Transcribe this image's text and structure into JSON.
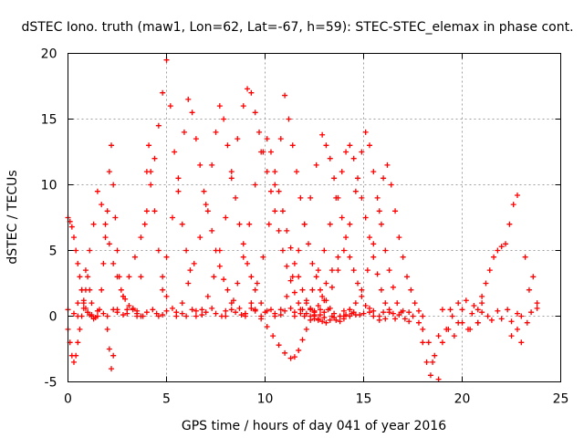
{
  "chart_data": {
    "type": "scatter",
    "title": "dSTEC Iono. truth (maw1, Lon=62, Lat=-67, h=59): STEC-STEC_elemax in phase cont.",
    "xlabel": "GPS time / hours of day 041 of year 2016",
    "ylabel": "dSTEC  / TECUs",
    "xlim": [
      0,
      25
    ],
    "ylim": [
      -5,
      20
    ],
    "x_ticks": [
      "0",
      "5",
      "10",
      "15",
      "20",
      "25"
    ],
    "y_ticks": [
      "-5",
      "0",
      "5",
      "10",
      "15",
      "20"
    ],
    "grid": true,
    "marker": "+",
    "color": "#ff0000",
    "series": [
      {
        "x": [
          0.0,
          0.3,
          0.5,
          0.8,
          1.0,
          1.2,
          1.5,
          1.8,
          2.0,
          2.3,
          2.5,
          2.8,
          3.0,
          3.3,
          3.5,
          3.8,
          4.0,
          4.3,
          4.5,
          4.8,
          5.0,
          5.3,
          5.5,
          5.8,
          6.0,
          6.3,
          6.5,
          6.8,
          7.0,
          7.3,
          7.5,
          7.8,
          8.0,
          8.3,
          8.5,
          8.8,
          9.0,
          9.3,
          9.5,
          9.8,
          10.0,
          10.3,
          10.5,
          10.8,
          11.0,
          11.3,
          11.5,
          11.8,
          12.0,
          12.3,
          12.5,
          12.8,
          13.0,
          13.3,
          13.5,
          13.8,
          14.0,
          14.3,
          14.5,
          14.8,
          15.0,
          15.3,
          15.5,
          15.8,
          16.0,
          16.3,
          16.5,
          16.8,
          17.0,
          17.3,
          17.5,
          17.8,
          18.0,
          18.3,
          18.5,
          18.8,
          19.0,
          19.3,
          19.5,
          19.8,
          20.0,
          20.3,
          20.5,
          20.8,
          21.0,
          21.3,
          21.5,
          21.8,
          22.0,
          22.3,
          22.5,
          22.8,
          23.0,
          23.3,
          23.5,
          23.8
        ],
        "y": [
          0.5,
          0.2,
          0.0,
          0.6,
          0.3,
          0.1,
          0.4,
          0.2,
          0.0,
          0.5,
          0.3,
          0.1,
          0.2,
          0.6,
          0.4,
          0.0,
          0.3,
          0.5,
          0.2,
          0.1,
          0.4,
          0.6,
          0.3,
          0.2,
          0.0,
          0.5,
          0.4,
          0.1,
          0.3,
          0.6,
          0.2,
          0.0,
          0.4,
          0.5,
          0.3,
          0.1,
          0.2,
          0.6,
          0.4,
          0.0,
          0.3,
          0.5,
          0.2,
          0.1,
          0.4,
          0.6,
          0.3,
          0.2,
          0.0,
          0.5,
          0.4,
          0.1,
          0.3,
          0.6,
          0.2,
          0.0,
          0.4,
          0.5,
          0.3,
          0.1,
          0.2,
          0.6,
          0.4,
          0.0,
          0.3,
          0.5,
          0.2,
          0.1,
          0.4,
          0.3,
          0.0,
          -0.5,
          -1.0,
          -2.0,
          -3.5,
          -1.5,
          0.5,
          -1.0,
          0.0,
          -0.5,
          0.5,
          -1.0,
          0.2,
          -0.5,
          0.3,
          0.0,
          -0.3,
          0.4,
          -0.2,
          0.5,
          -0.4,
          0.2,
          0.0,
          -0.5,
          0.3,
          0.6
        ]
      },
      {
        "x": [
          0.0,
          0.1,
          0.2,
          0.3,
          0.4,
          0.5,
          0.6,
          0.7,
          0.8,
          0.9,
          1.0,
          1.1,
          1.2,
          1.3,
          1.4,
          1.5
        ],
        "y": [
          7.5,
          7.2,
          6.8,
          6.0,
          5.0,
          4.0,
          3.0,
          2.0,
          1.2,
          0.6,
          0.3,
          0.1,
          0.0,
          -0.2,
          -0.1,
          0.0
        ]
      },
      {
        "x": [
          0.0,
          0.1,
          0.2,
          0.3,
          0.4,
          0.5,
          0.6,
          0.7,
          0.8,
          0.9,
          1.0,
          1.1,
          1.2
        ],
        "y": [
          -1.0,
          -2.0,
          -3.0,
          -3.5,
          -3.0,
          -2.0,
          -1.0,
          0.0,
          1.0,
          2.0,
          3.0,
          2.0,
          1.0
        ]
      },
      {
        "x": [
          0.5,
          0.7,
          0.9,
          1.1,
          1.3,
          1.5,
          1.7,
          1.9,
          2.1,
          2.3,
          2.5,
          2.7,
          2.9,
          3.1,
          3.3,
          3.5,
          3.7
        ],
        "y": [
          1.0,
          2.0,
          3.5,
          5.0,
          7.0,
          9.5,
          8.5,
          7.0,
          5.5,
          4.0,
          3.0,
          2.0,
          1.3,
          0.8,
          0.5,
          0.2,
          0.0
        ]
      },
      {
        "x": [
          1.6,
          1.7,
          1.8,
          1.9,
          2.0,
          2.1,
          2.2,
          2.3,
          2.4,
          2.5,
          2.6,
          2.8,
          3.0
        ],
        "y": [
          0.5,
          2.0,
          4.0,
          6.0,
          8.0,
          11.0,
          13.0,
          10.0,
          7.5,
          5.0,
          3.0,
          1.5,
          0.5
        ]
      },
      {
        "x": [
          2.0,
          2.1,
          2.2,
          2.3
        ],
        "y": [
          -1.0,
          -2.5,
          -4.0,
          -3.0
        ]
      },
      {
        "x": [
          2.5,
          2.8,
          3.1,
          3.4,
          3.7,
          4.0,
          4.2,
          4.4,
          4.6,
          4.8,
          5.0,
          5.2,
          5.4,
          5.6,
          5.8,
          6.0,
          6.2
        ],
        "y": [
          0.5,
          1.5,
          3.0,
          4.5,
          6.0,
          8.0,
          10.0,
          12.0,
          14.5,
          17.0,
          19.5,
          16.0,
          12.5,
          9.5,
          7.0,
          5.0,
          3.5
        ]
      },
      {
        "x": [
          3.5,
          3.7,
          3.9,
          4.0,
          4.1,
          4.2,
          4.4,
          4.6,
          4.8,
          5.0
        ],
        "y": [
          0.0,
          3.0,
          7.0,
          11.0,
          13.0,
          11.0,
          8.0,
          5.0,
          3.0,
          1.5
        ]
      },
      {
        "x": [
          4.6,
          4.8,
          5.0,
          5.3,
          5.6,
          5.9,
          6.1,
          6.3,
          6.5,
          6.7,
          6.9,
          7.1,
          7.3,
          7.5,
          7.7,
          7.9,
          8.1,
          8.4,
          8.7,
          9.0
        ],
        "y": [
          0.0,
          2.0,
          4.5,
          7.5,
          10.5,
          14.0,
          16.5,
          15.5,
          13.5,
          11.5,
          9.5,
          8.0,
          6.5,
          5.0,
          3.8,
          2.8,
          2.0,
          1.2,
          0.6,
          0.2
        ]
      },
      {
        "x": [
          5.5,
          5.8,
          6.1,
          6.4,
          6.7,
          7.0,
          7.3,
          7.5,
          7.7,
          7.9,
          8.1,
          8.3,
          8.5,
          8.7,
          8.9,
          9.1,
          9.3,
          9.5,
          9.8,
          10.1
        ],
        "y": [
          0.0,
          1.0,
          2.5,
          4.0,
          6.0,
          8.5,
          11.5,
          14.0,
          16.0,
          15.0,
          13.0,
          11.0,
          9.0,
          7.0,
          5.5,
          4.0,
          3.0,
          2.0,
          1.0,
          0.4
        ]
      },
      {
        "x": [
          6.5,
          6.8,
          7.1,
          7.4,
          7.7,
          8.0,
          8.3,
          8.6,
          8.9,
          9.1,
          9.3,
          9.5,
          9.7,
          9.9,
          10.1,
          10.3,
          10.5,
          10.7,
          10.9,
          11.1,
          11.3,
          11.5,
          11.7,
          11.9,
          12.1,
          12.3,
          12.5,
          12.7,
          13.0
        ],
        "y": [
          0.0,
          0.5,
          1.5,
          3.0,
          5.0,
          7.5,
          10.5,
          13.5,
          16.0,
          17.3,
          17.0,
          15.5,
          14.0,
          12.5,
          11.0,
          9.5,
          8.0,
          6.5,
          5.0,
          3.8,
          2.7,
          1.8,
          1.0,
          0.5,
          0.2,
          0.0,
          -0.2,
          -0.3,
          -0.1
        ]
      },
      {
        "x": [
          8.0,
          8.3,
          8.6,
          8.9,
          9.2,
          9.5,
          9.8,
          10.1,
          10.3,
          10.5,
          10.7,
          10.9,
          11.1,
          11.3,
          11.5,
          11.7,
          11.9,
          12.1,
          12.3,
          12.5,
          12.7,
          12.9,
          13.1,
          13.3,
          13.5,
          13.8,
          14.1,
          14.4
        ],
        "y": [
          0.0,
          1.0,
          2.5,
          4.5,
          7.0,
          10.0,
          12.5,
          13.5,
          12.5,
          11.0,
          9.5,
          8.0,
          6.5,
          5.2,
          4.0,
          3.0,
          2.0,
          1.2,
          0.6,
          0.1,
          -0.2,
          -0.4,
          -0.5,
          -0.3,
          -0.1,
          0.0,
          0.1,
          0.2
        ]
      },
      {
        "x": [
          9.0,
          9.3,
          9.6,
          9.9,
          10.2,
          10.5,
          10.8,
          11.0,
          11.2,
          11.4,
          11.6,
          11.8,
          12.0,
          12.2,
          12.4,
          12.6,
          12.8,
          13.0,
          13.2,
          13.4,
          13.6,
          13.8,
          14.0,
          14.3,
          14.6
        ],
        "y": [
          0.0,
          1.0,
          2.5,
          4.5,
          7.0,
          10.0,
          13.5,
          16.8,
          15.0,
          13.0,
          11.0,
          9.0,
          7.0,
          5.5,
          4.0,
          3.0,
          2.0,
          1.2,
          0.5,
          0.0,
          -0.3,
          -0.4,
          -0.2,
          0.0,
          0.1
        ]
      },
      {
        "x": [
          9.5,
          9.8,
          10.1,
          10.4,
          10.7,
          11.0,
          11.3,
          11.5,
          11.7,
          11.9,
          12.1,
          12.3,
          12.5,
          12.7,
          12.9,
          13.1,
          13.4,
          13.7
        ],
        "y": [
          0.5,
          -0.2,
          -0.8,
          -1.5,
          -2.2,
          -2.8,
          -3.2,
          -3.1,
          -2.6,
          -1.8,
          -1.0,
          -0.3,
          0.3,
          0.8,
          1.5,
          2.5,
          3.5,
          4.5
        ]
      },
      {
        "x": [
          10.5,
          10.8,
          11.1,
          11.4,
          11.7,
          12.0,
          12.3,
          12.6,
          12.9,
          13.1,
          13.3,
          13.5,
          13.7,
          13.9,
          14.1,
          14.3,
          14.5,
          14.7,
          14.9,
          15.1,
          15.3,
          15.5,
          15.8,
          16.1
        ],
        "y": [
          0.0,
          0.5,
          1.5,
          3.0,
          5.0,
          7.0,
          9.0,
          11.5,
          13.8,
          13.0,
          12.0,
          10.5,
          9.0,
          7.5,
          6.0,
          4.5,
          3.5,
          2.5,
          1.5,
          0.8,
          0.3,
          0.0,
          -0.3,
          -0.2
        ]
      },
      {
        "x": [
          11.5,
          11.8,
          12.1,
          12.4,
          12.7,
          13.0,
          13.3,
          13.6,
          13.9,
          14.1,
          14.3,
          14.5,
          14.7,
          14.9,
          15.1,
          15.3,
          15.5,
          15.7,
          15.9,
          16.1,
          16.3,
          16.6
        ],
        "y": [
          0.0,
          0.5,
          1.0,
          2.0,
          3.5,
          5.0,
          7.0,
          9.0,
          11.0,
          12.5,
          13.0,
          12.0,
          10.5,
          9.0,
          7.5,
          6.0,
          4.5,
          3.2,
          2.0,
          1.0,
          0.3,
          -0.2
        ]
      },
      {
        "x": [
          12.5,
          12.8,
          13.1,
          13.4,
          13.7,
          14.0,
          14.3,
          14.6,
          14.9,
          15.1,
          15.3,
          15.5,
          15.7,
          15.9,
          16.1,
          16.3,
          16.5,
          16.7,
          16.9,
          17.1,
          17.3
        ],
        "y": [
          0.0,
          0.5,
          1.2,
          2.2,
          3.5,
          5.0,
          7.0,
          9.5,
          12.5,
          14.0,
          13.0,
          11.0,
          9.0,
          7.0,
          5.0,
          3.5,
          2.2,
          1.0,
          0.3,
          -0.2,
          -0.4
        ]
      },
      {
        "x": [
          14.0,
          14.3,
          14.6,
          14.9,
          15.2,
          15.5,
          15.8,
          16.0,
          16.2,
          16.4,
          16.6,
          16.8,
          17.0,
          17.2,
          17.4,
          17.6,
          17.8,
          18.0
        ],
        "y": [
          0.0,
          0.5,
          1.0,
          2.0,
          3.5,
          5.5,
          8.0,
          10.5,
          11.5,
          10.0,
          8.0,
          6.0,
          4.5,
          3.0,
          2.0,
          1.0,
          0.4,
          0.0
        ]
      },
      {
        "x": [
          18.0,
          18.2,
          18.4,
          18.6,
          18.8,
          19.0,
          19.2,
          19.4,
          19.6,
          19.8,
          20.0,
          20.2,
          20.4,
          20.6,
          20.8,
          21.0
        ],
        "y": [
          -2.0,
          -3.5,
          -4.5,
          -3.0,
          -4.8,
          -2.0,
          -1.0,
          0.5,
          -1.5,
          1.0,
          -0.5,
          1.2,
          -1.0,
          0.8,
          -0.5,
          1.0
        ]
      },
      {
        "x": [
          20.8,
          21.0,
          21.2,
          21.4,
          21.6,
          21.8,
          22.0,
          22.2,
          22.4,
          22.6,
          22.8
        ],
        "y": [
          0.5,
          1.5,
          2.5,
          3.5,
          4.5,
          5.0,
          5.3,
          5.5,
          7.0,
          8.5,
          9.2
        ]
      },
      {
        "x": [
          22.5,
          22.8,
          23.0,
          23.2,
          23.4,
          23.6,
          23.8
        ],
        "y": [
          -1.5,
          -1.0,
          -2.0,
          4.5,
          2.0,
          3.0,
          1.0
        ]
      }
    ]
  }
}
